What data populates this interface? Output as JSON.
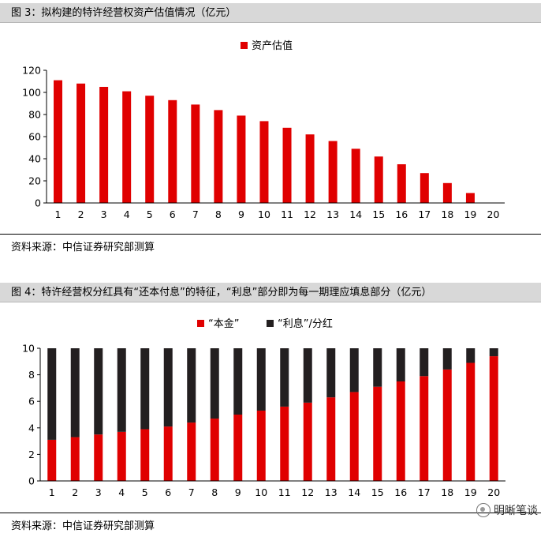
{
  "figure3": {
    "title": "图 3：拟构建的特许经营权资产估值情况（亿元）",
    "source": "资料来源：中信证券研究部测算"
  },
  "figure4": {
    "title": "图 4：特许经营权分红具有“还本付息”的特征，“利息”部分即为每一期理应填息部分（亿元）",
    "source": "资料来源：中信证券研究部测算"
  },
  "watermark": {
    "text": "明晰笔谈",
    "icon": "wechat-icon"
  },
  "colors": {
    "red": "#e00000",
    "black": "#231f20"
  },
  "chart_data": [
    {
      "type": "bar",
      "categories": [
        "1",
        "2",
        "3",
        "4",
        "5",
        "6",
        "7",
        "8",
        "9",
        "10",
        "11",
        "12",
        "13",
        "14",
        "15",
        "16",
        "17",
        "18",
        "19",
        "20"
      ],
      "series": [
        {
          "name": "资产估值",
          "values": [
            111,
            108,
            105,
            101,
            97,
            93,
            89,
            84,
            79,
            74,
            68,
            62,
            56,
            49,
            42,
            35,
            27,
            18,
            9,
            0
          ]
        }
      ],
      "ylim": [
        0,
        120
      ],
      "yticks": [
        0,
        20,
        40,
        60,
        80,
        100,
        120
      ],
      "legend": "top-center"
    },
    {
      "type": "bar",
      "stacked": true,
      "categories": [
        "1",
        "2",
        "3",
        "4",
        "5",
        "6",
        "7",
        "8",
        "9",
        "10",
        "11",
        "12",
        "13",
        "14",
        "15",
        "16",
        "17",
        "18",
        "19",
        "20"
      ],
      "series": [
        {
          "name": "“本金”",
          "values": [
            3.1,
            3.3,
            3.5,
            3.7,
            3.9,
            4.1,
            4.4,
            4.7,
            5.0,
            5.3,
            5.6,
            5.9,
            6.3,
            6.7,
            7.1,
            7.5,
            7.9,
            8.4,
            8.9,
            9.4
          ]
        },
        {
          "name": "“利息”/分红",
          "values": [
            6.9,
            6.7,
            6.5,
            6.3,
            6.1,
            5.9,
            5.6,
            5.3,
            5.0,
            4.7,
            4.4,
            4.1,
            3.7,
            3.3,
            2.9,
            2.5,
            2.1,
            1.6,
            1.1,
            0.6
          ]
        }
      ],
      "ylim": [
        0,
        10
      ],
      "yticks": [
        0,
        2,
        4,
        6,
        8,
        10
      ],
      "legend": "top-center"
    }
  ]
}
